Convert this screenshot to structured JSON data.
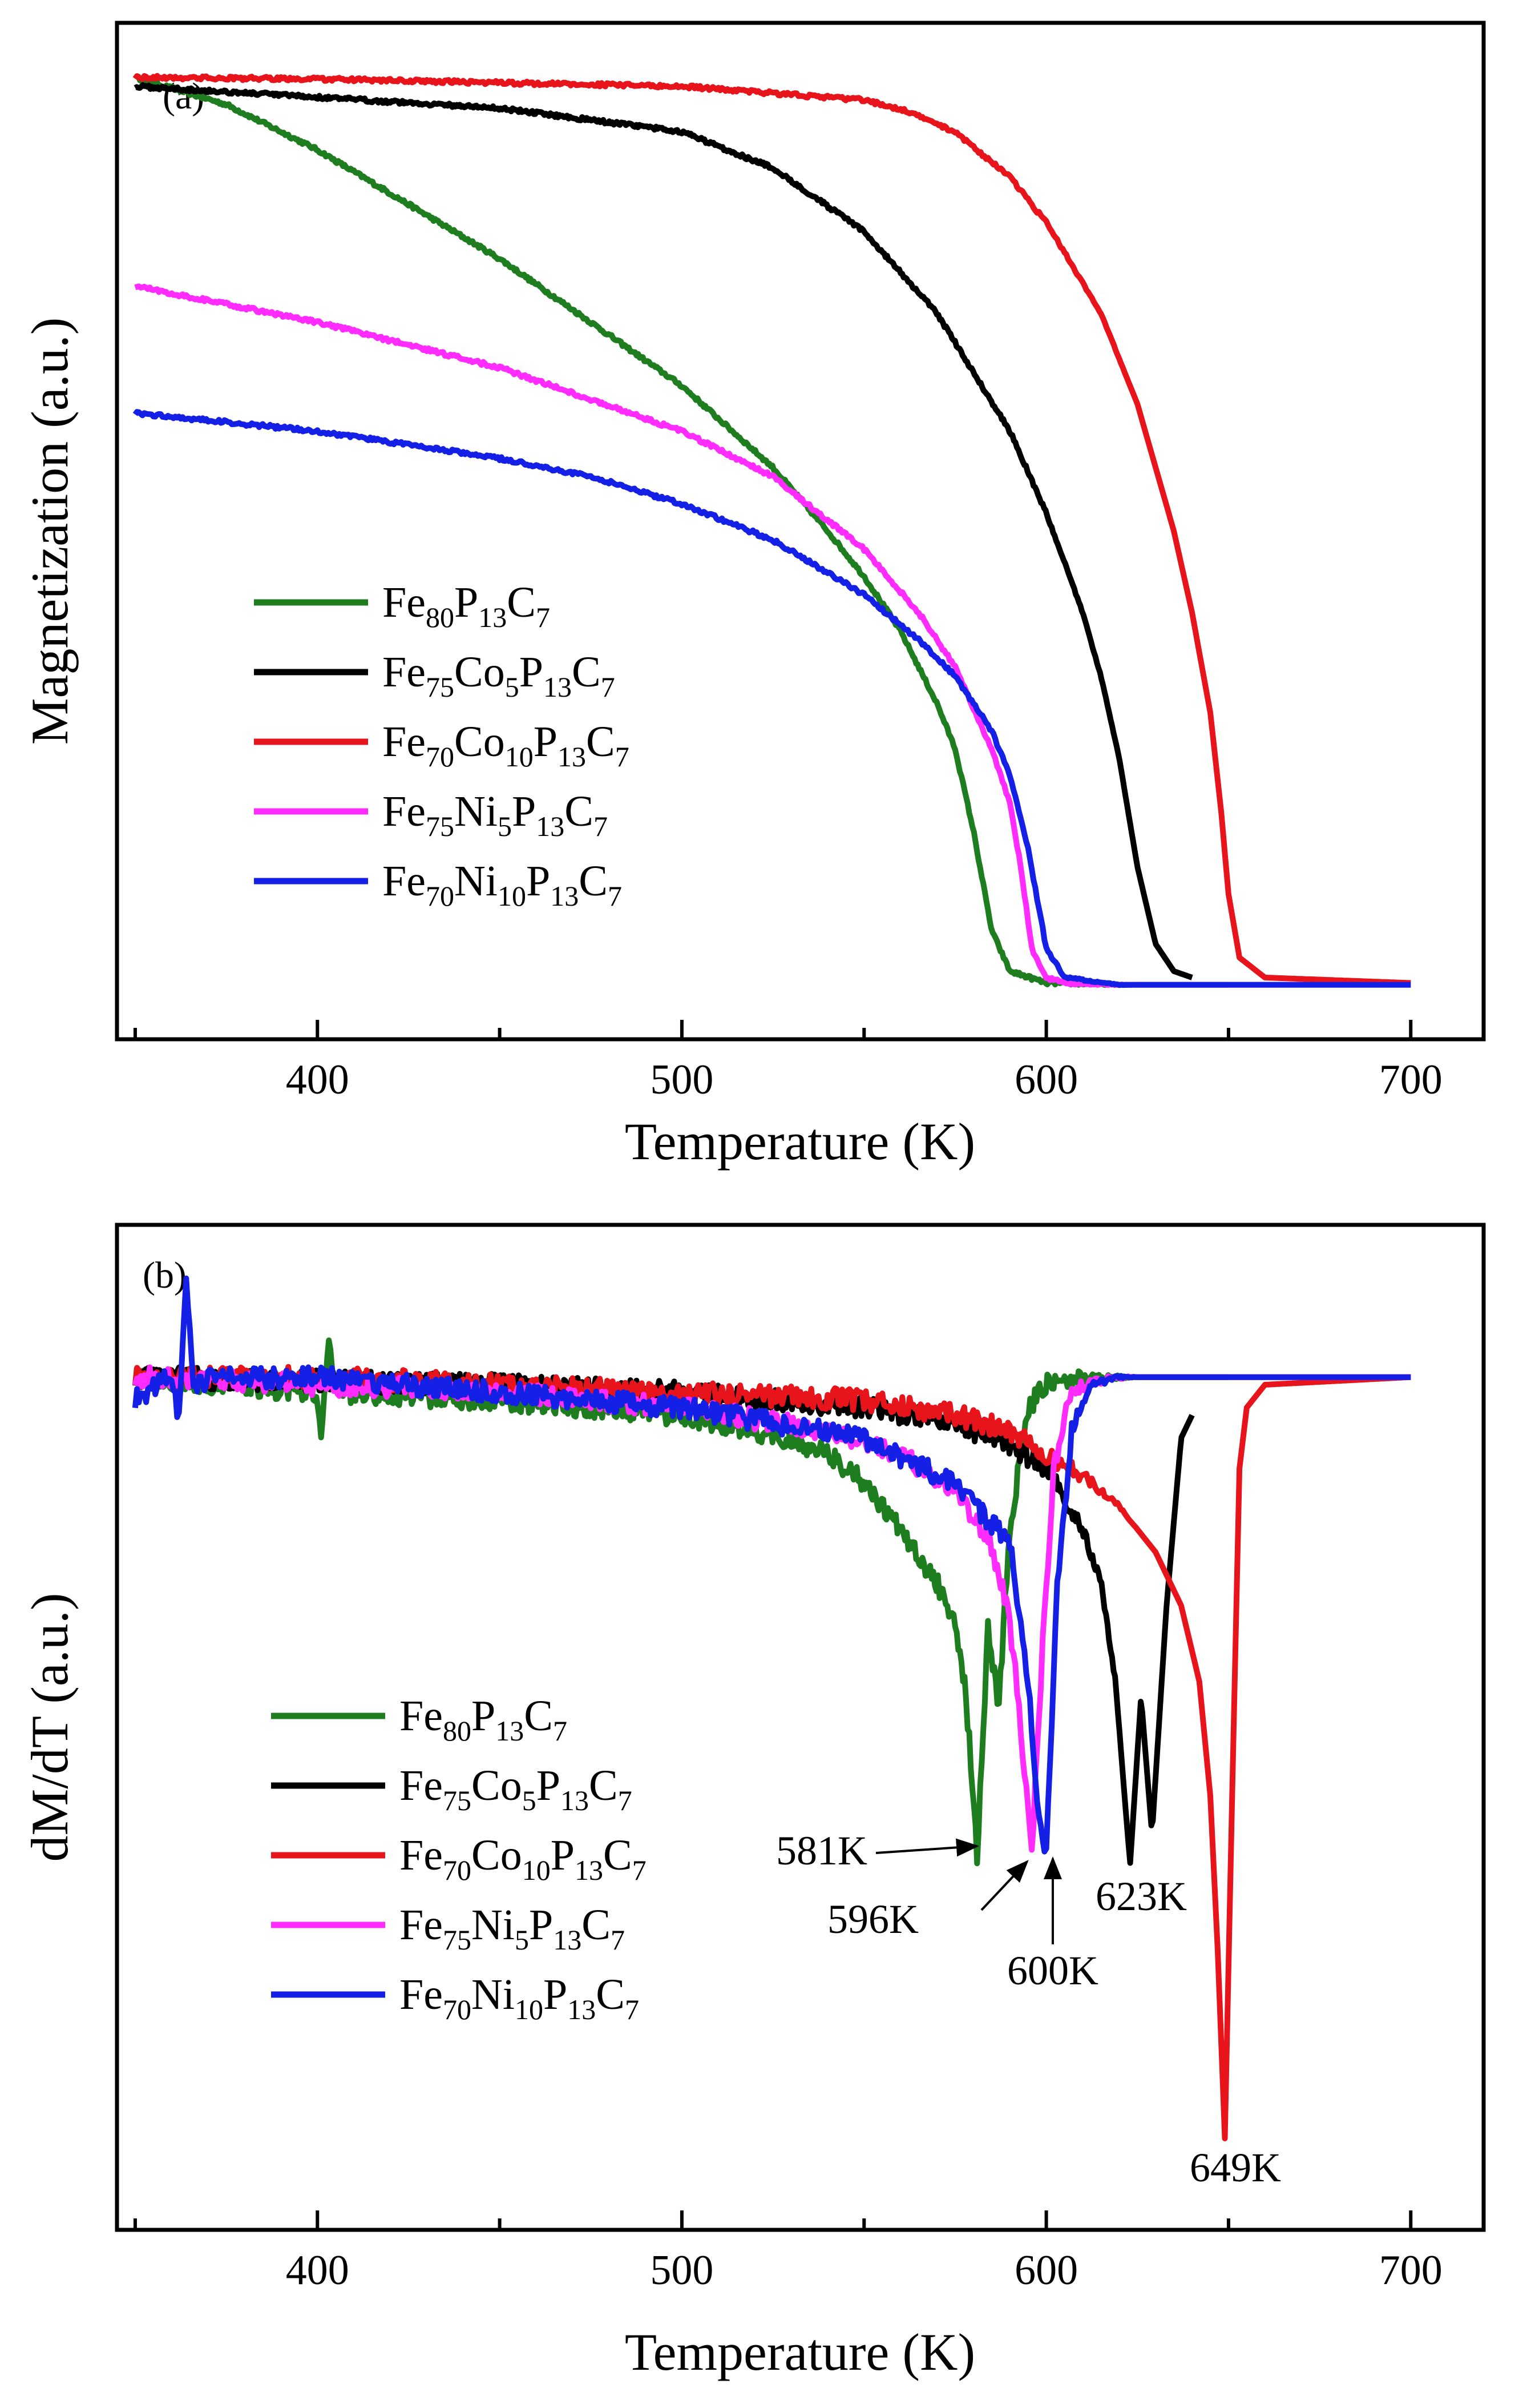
{
  "chart_data": [
    {
      "type": "line",
      "panel_label": "(a)",
      "xlabel": "Temperature (K)",
      "ylabel": "Magnetization (a.u.)",
      "xlim": [
        345,
        720
      ],
      "ylim": [
        -0.06,
        1.06
      ],
      "xticks": [
        400,
        500,
        600,
        700
      ],
      "yticks_shown": false,
      "legend_position": "center-left",
      "series": [
        {
          "name": "Fe80P13C7",
          "legend": [
            [
              "Fe",
              ""
            ],
            [
              "80",
              "sub"
            ],
            [
              "P",
              ""
            ],
            [
              "13",
              "sub"
            ],
            [
              "C",
              ""
            ],
            [
              "7",
              "sub"
            ]
          ],
          "color": "#1e7d1e",
          "x": [
            350,
            375,
            400,
            425,
            450,
            475,
            500,
            525,
            540,
            550,
            560,
            570,
            575,
            580,
            585,
            590,
            600,
            620,
            650
          ],
          "y": [
            1.0,
            0.97,
            0.92,
            0.86,
            0.8,
            0.73,
            0.66,
            0.57,
            0.5,
            0.45,
            0.39,
            0.31,
            0.26,
            0.17,
            0.06,
            0.015,
            0.002,
            0.0,
            0.0
          ]
        },
        {
          "name": "Fe75Co5P13C7",
          "legend": [
            [
              "Fe",
              ""
            ],
            [
              "75",
              "sub"
            ],
            [
              "Co",
              ""
            ],
            [
              "5",
              "sub"
            ],
            [
              "P",
              ""
            ],
            [
              "13",
              "sub"
            ],
            [
              "C",
              ""
            ],
            [
              "7",
              "sub"
            ]
          ],
          "color": "#000000",
          "x": [
            350,
            400,
            450,
            500,
            525,
            550,
            570,
            590,
            600,
            610,
            615,
            620,
            625,
            630,
            635,
            640
          ],
          "y": [
            0.99,
            0.978,
            0.966,
            0.94,
            0.9,
            0.83,
            0.74,
            0.61,
            0.52,
            0.41,
            0.34,
            0.25,
            0.13,
            0.045,
            0.015,
            0.008
          ]
        },
        {
          "name": "Fe70Co10P13C7",
          "legend": [
            [
              "Fe",
              ""
            ],
            [
              "70",
              "sub"
            ],
            [
              "Co",
              ""
            ],
            [
              "10",
              "sub"
            ],
            [
              "P",
              ""
            ],
            [
              "13",
              "sub"
            ],
            [
              "C",
              ""
            ],
            [
              "7",
              "sub"
            ]
          ],
          "color": "#e8141b",
          "x": [
            350,
            400,
            450,
            500,
            550,
            560,
            575,
            590,
            600,
            615,
            625,
            635,
            640,
            645,
            648,
            650,
            653,
            660,
            700
          ],
          "y": [
            1.0,
            0.998,
            0.994,
            0.99,
            0.975,
            0.965,
            0.94,
            0.89,
            0.84,
            0.74,
            0.64,
            0.5,
            0.41,
            0.3,
            0.19,
            0.1,
            0.03,
            0.008,
            0.002
          ]
        },
        {
          "name": "Fe75Ni5P13C7",
          "legend": [
            [
              "Fe",
              ""
            ],
            [
              "75",
              "sub"
            ],
            [
              "Ni",
              ""
            ],
            [
              "5",
              "sub"
            ],
            [
              "P",
              ""
            ],
            [
              "13",
              "sub"
            ],
            [
              "C",
              ""
            ],
            [
              "7",
              "sub"
            ]
          ],
          "color": "#ff2bff",
          "x": [
            350,
            400,
            450,
            500,
            525,
            550,
            565,
            575,
            585,
            590,
            593,
            596,
            600,
            605,
            620,
            700
          ],
          "y": [
            0.77,
            0.73,
            0.68,
            0.61,
            0.56,
            0.48,
            0.41,
            0.35,
            0.26,
            0.2,
            0.13,
            0.04,
            0.008,
            0.002,
            0.0,
            0.0
          ]
        },
        {
          "name": "Fe70Ni10P13C7",
          "legend": [
            [
              "Fe",
              ""
            ],
            [
              "70",
              "sub"
            ],
            [
              "Ni",
              ""
            ],
            [
              "10",
              "sub"
            ],
            [
              "P",
              ""
            ],
            [
              "13",
              "sub"
            ],
            [
              "C",
              ""
            ],
            [
              "7",
              "sub"
            ]
          ],
          "color": "#1520e6",
          "x": [
            350,
            375,
            400,
            425,
            450,
            475,
            500,
            525,
            550,
            565,
            575,
            585,
            590,
            595,
            600,
            605,
            620,
            700
          ],
          "y": [
            0.63,
            0.62,
            0.61,
            0.595,
            0.58,
            0.56,
            0.53,
            0.49,
            0.43,
            0.38,
            0.34,
            0.28,
            0.23,
            0.15,
            0.04,
            0.008,
            0.0,
            0.0
          ]
        }
      ]
    },
    {
      "type": "line",
      "panel_label": "(b)",
      "xlabel": "Temperature (K)",
      "ylabel": "dM/dT (a.u.)",
      "xlim": [
        345,
        720
      ],
      "ylim": [
        -1.12,
        0.2
      ],
      "xticks": [
        400,
        500,
        600,
        700
      ],
      "yticks_shown": false,
      "legend_position": "center-left",
      "series": [
        {
          "name": "Fe80P13C7",
          "color": "#1e7d1e",
          "x": [
            350,
            400,
            401,
            403,
            405,
            450,
            500,
            520,
            540,
            550,
            560,
            570,
            575,
            578,
            581,
            584,
            587,
            590,
            595,
            600,
            610,
            650
          ],
          "y": [
            0.0,
            -0.02,
            -0.07,
            0.05,
            -0.02,
            -0.03,
            -0.05,
            -0.07,
            -0.1,
            -0.14,
            -0.2,
            -0.27,
            -0.33,
            -0.42,
            -0.63,
            -0.33,
            -0.43,
            -0.2,
            -0.04,
            -0.01,
            0.0,
            0.0
          ]
        },
        {
          "name": "Fe75Co5P13C7",
          "color": "#000000",
          "x": [
            350,
            400,
            450,
            500,
            550,
            575,
            590,
            600,
            605,
            610,
            615,
            619,
            623,
            626,
            629,
            633,
            637,
            640
          ],
          "y": [
            0.0,
            -0.005,
            -0.01,
            -0.02,
            -0.04,
            -0.06,
            -0.09,
            -0.12,
            -0.16,
            -0.2,
            -0.27,
            -0.4,
            -0.64,
            -0.42,
            -0.6,
            -0.3,
            -0.08,
            -0.05
          ]
        },
        {
          "name": "Fe70Co10P13C7",
          "color": "#e8141b",
          "x": [
            350,
            400,
            450,
            500,
            550,
            575,
            590,
            600,
            610,
            620,
            630,
            637,
            642,
            645,
            647,
            649,
            651,
            653,
            655,
            660,
            700
          ],
          "y": [
            0.0,
            0.0,
            -0.01,
            -0.02,
            -0.03,
            -0.05,
            -0.07,
            -0.1,
            -0.13,
            -0.17,
            -0.23,
            -0.3,
            -0.4,
            -0.55,
            -0.75,
            -1.0,
            -0.55,
            -0.12,
            -0.04,
            -0.01,
            0.0
          ]
        },
        {
          "name": "Fe75Ni5P13C7",
          "color": "#ff2bff",
          "x": [
            350,
            400,
            450,
            500,
            540,
            560,
            575,
            585,
            590,
            593,
            596,
            599,
            602,
            606,
            610,
            620,
            700
          ],
          "y": [
            0.0,
            -0.01,
            -0.02,
            -0.04,
            -0.07,
            -0.1,
            -0.15,
            -0.22,
            -0.32,
            -0.46,
            -0.63,
            -0.35,
            -0.12,
            -0.03,
            -0.01,
            0.0,
            0.0
          ]
        },
        {
          "name": "Fe70Ni10P13C7",
          "color": "#1520e6",
          "x": [
            350,
            360,
            362,
            364,
            366,
            370,
            400,
            450,
            500,
            550,
            575,
            590,
            595,
            598,
            600,
            603,
            607,
            612,
            620,
            700
          ],
          "y": [
            -0.03,
            0.0,
            -0.06,
            0.14,
            -0.02,
            0.0,
            0.0,
            -0.02,
            -0.04,
            -0.08,
            -0.14,
            -0.22,
            -0.4,
            -0.58,
            -0.63,
            -0.28,
            -0.07,
            -0.01,
            0.0,
            0.0
          ]
        }
      ],
      "annotations": [
        {
          "text": "581K",
          "x": 581,
          "y": -0.63
        },
        {
          "text": "596K",
          "x": 596,
          "y": -0.63
        },
        {
          "text": "600K",
          "x": 600,
          "y": -0.63
        },
        {
          "text": "623K",
          "x": 623,
          "y": -0.64
        },
        {
          "text": "649K",
          "x": 649,
          "y": -1.0
        }
      ]
    }
  ]
}
